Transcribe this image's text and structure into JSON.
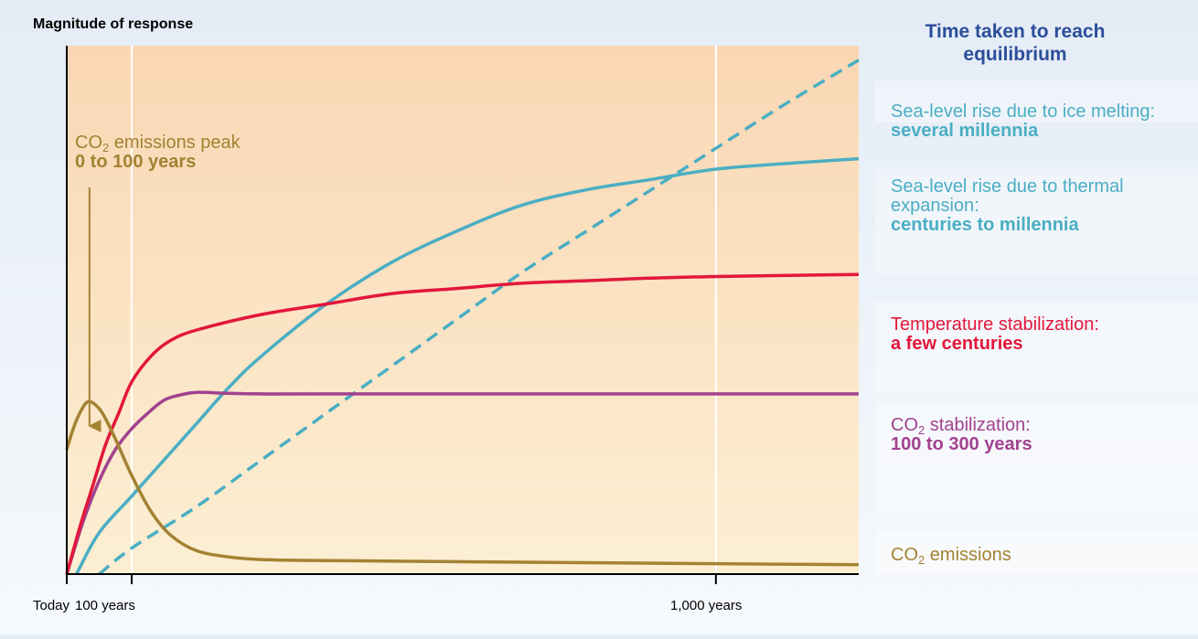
{
  "chart_data": {
    "type": "line",
    "title": "",
    "ylabel": "Magnitude of response",
    "xlabel": "",
    "x_ticks": [
      {
        "value": 0,
        "label": "Today"
      },
      {
        "value": 100,
        "label": "100 years"
      },
      {
        "value": 1000,
        "label": "1,000  years"
      }
    ],
    "xlim": [
      0,
      1220
    ],
    "ylim": [
      0,
      1
    ],
    "grid": "vertical at 100 and 1,000 years",
    "right_panel_title": "Time taken to reach equilibrium",
    "annotation": {
      "text": "CO",
      "sub": "2",
      "text_after": " emissions peak",
      "time": "0 to 100 years",
      "points_to_x": 35
    },
    "series": [
      {
        "name": "Sea-level rise due to ice melting:",
        "time": "several millennia",
        "color": "#4aaec3",
        "style": "dashed",
        "points": [
          [
            50,
            0
          ],
          [
            100,
            0.05
          ],
          [
            200,
            0.13
          ],
          [
            300,
            0.22
          ],
          [
            400,
            0.31
          ],
          [
            500,
            0.4
          ],
          [
            600,
            0.49
          ],
          [
            700,
            0.58
          ],
          [
            800,
            0.66
          ],
          [
            900,
            0.74
          ],
          [
            1000,
            0.82
          ],
          [
            1100,
            0.9
          ],
          [
            1220,
            0.99
          ]
        ]
      },
      {
        "name": "Sea-level rise due to thermal expansion:",
        "time": "centuries to millennia",
        "color": "#4aaec3",
        "style": "solid",
        "points": [
          [
            15,
            0
          ],
          [
            50,
            0.08
          ],
          [
            100,
            0.15
          ],
          [
            150,
            0.22
          ],
          [
            200,
            0.29
          ],
          [
            250,
            0.36
          ],
          [
            300,
            0.42
          ],
          [
            400,
            0.52
          ],
          [
            500,
            0.6
          ],
          [
            600,
            0.66
          ],
          [
            700,
            0.71
          ],
          [
            800,
            0.74
          ],
          [
            900,
            0.76
          ],
          [
            1000,
            0.78
          ],
          [
            1100,
            0.79
          ],
          [
            1220,
            0.8
          ]
        ]
      },
      {
        "name": "Temperature stabilization:",
        "time": "a few centuries",
        "color": "#e2173b",
        "style": "solid",
        "points": [
          [
            0,
            0
          ],
          [
            20,
            0.09
          ],
          [
            40,
            0.17
          ],
          [
            60,
            0.25
          ],
          [
            80,
            0.31
          ],
          [
            100,
            0.37
          ],
          [
            130,
            0.42
          ],
          [
            160,
            0.45
          ],
          [
            200,
            0.47
          ],
          [
            300,
            0.5
          ],
          [
            400,
            0.52
          ],
          [
            500,
            0.54
          ],
          [
            600,
            0.55
          ],
          [
            700,
            0.56
          ],
          [
            800,
            0.565
          ],
          [
            900,
            0.57
          ],
          [
            1000,
            0.573
          ],
          [
            1100,
            0.575
          ],
          [
            1220,
            0.577
          ]
        ]
      },
      {
        "name": "CO",
        "sub": "2",
        "name_after": " stabilization:",
        "time": "100 to 300 years",
        "color": "#a2428f",
        "style": "solid",
        "points": [
          [
            0,
            0
          ],
          [
            25,
            0.1
          ],
          [
            50,
            0.18
          ],
          [
            75,
            0.24
          ],
          [
            100,
            0.28
          ],
          [
            125,
            0.31
          ],
          [
            150,
            0.335
          ],
          [
            175,
            0.345
          ],
          [
            200,
            0.35
          ],
          [
            250,
            0.348
          ],
          [
            300,
            0.347
          ],
          [
            400,
            0.347
          ],
          [
            1220,
            0.347
          ]
        ]
      },
      {
        "name": "CO",
        "sub": "2",
        "name_after": " emissions",
        "time": "",
        "color": "#a38233",
        "style": "solid",
        "points": [
          [
            0,
            0.24
          ],
          [
            10,
            0.28
          ],
          [
            20,
            0.31
          ],
          [
            30,
            0.33
          ],
          [
            40,
            0.33
          ],
          [
            55,
            0.31
          ],
          [
            75,
            0.26
          ],
          [
            100,
            0.19
          ],
          [
            130,
            0.12
          ],
          [
            160,
            0.075
          ],
          [
            200,
            0.045
          ],
          [
            250,
            0.033
          ],
          [
            300,
            0.028
          ],
          [
            400,
            0.026
          ],
          [
            600,
            0.024
          ],
          [
            800,
            0.022
          ],
          [
            1000,
            0.02
          ],
          [
            1220,
            0.018
          ]
        ]
      }
    ]
  }
}
